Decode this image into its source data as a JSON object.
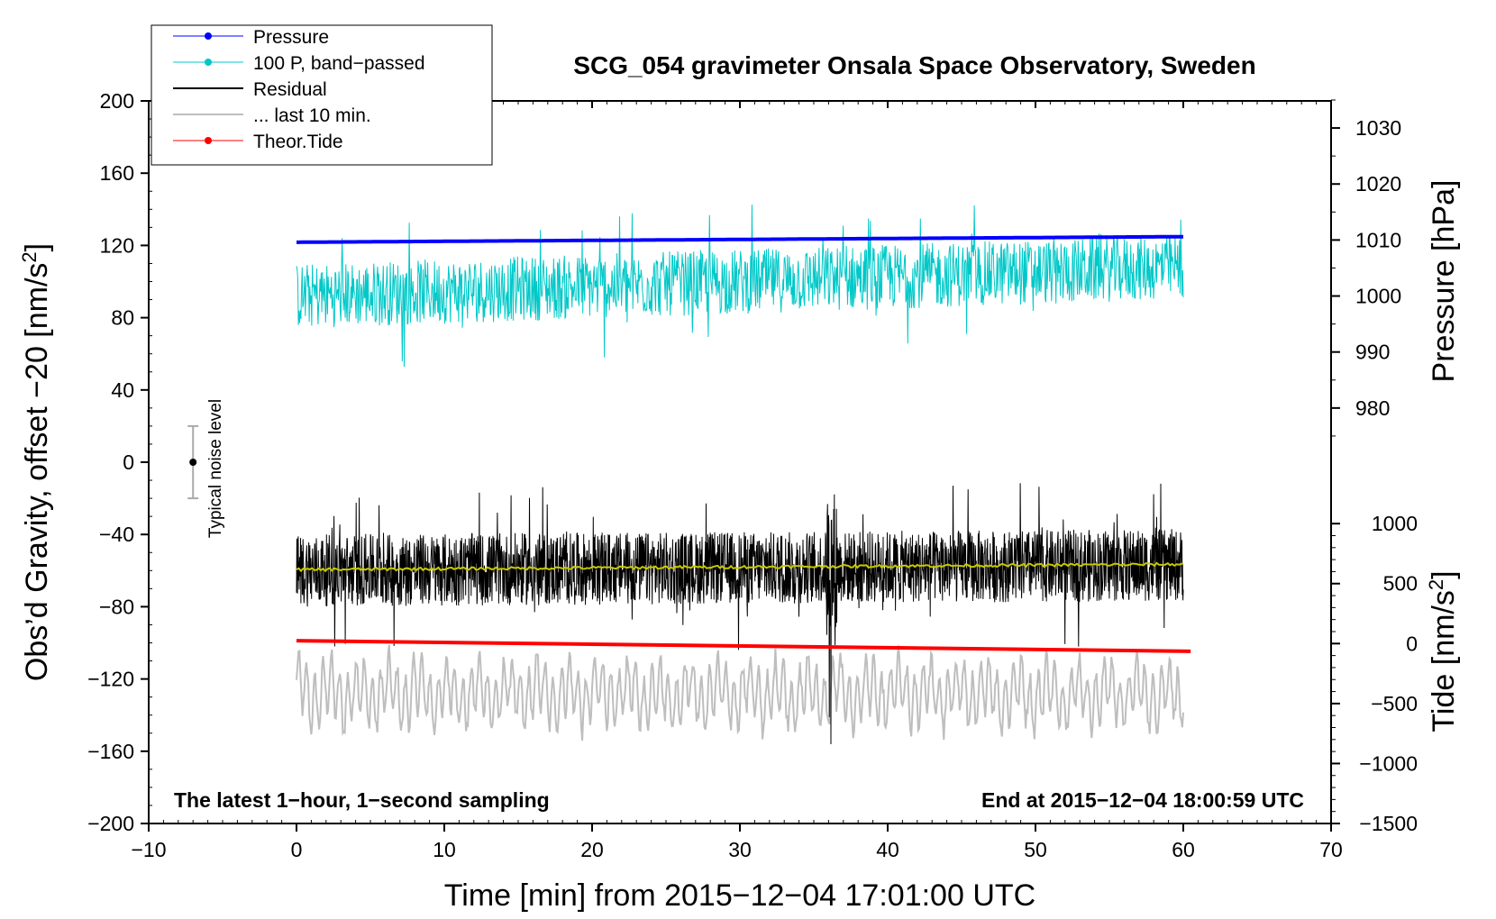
{
  "chart_data": {
    "type": "line",
    "title": "SCG_054 gravimeter Onsala Space Observatory, Sweden",
    "xlabel": "Time [min] from 2015−12−04 17:01:00 UTC",
    "ylabel_left_main": "Obs’d Gravity, offset −20 [nm/s",
    "ylabel_left_sup": "2",
    "ylabel_left_end": "]",
    "ylabel_right_pressure": "Pressure [hPa]",
    "ylabel_right_tide_main": "Tide [nm/s",
    "ylabel_right_tide_sup": "2",
    "ylabel_right_tide_end": "]",
    "xlim": [
      -10,
      70
    ],
    "ylim": [
      -200,
      200
    ],
    "x_ticks": [
      -10,
      0,
      10,
      20,
      30,
      40,
      50,
      60,
      70
    ],
    "x_tick_labels": [
      "−10",
      "0",
      "10",
      "20",
      "30",
      "40",
      "50",
      "60",
      "70"
    ],
    "y_ticks": [
      -200,
      -160,
      -120,
      -80,
      -40,
      0,
      40,
      80,
      120,
      160,
      200
    ],
    "y_tick_labels": [
      "−200",
      "−160",
      "−120",
      "−80",
      "−40",
      "0",
      "40",
      "80",
      "120",
      "160",
      "200"
    ],
    "pressure_axis": {
      "ticks": [
        980,
        990,
        1000,
        1010,
        1020,
        1030
      ],
      "tick_labels": [
        "980",
        "990",
        "1000",
        "1010",
        "1020",
        "1030"
      ],
      "ref": [
        {
          "value": 980,
          "gravity": 30
        },
        {
          "value": 1030,
          "gravity": 185
        }
      ]
    },
    "tide_axis": {
      "ticks": [
        -1500,
        -1000,
        -500,
        0,
        500,
        1000
      ],
      "tick_labels": [
        "−1500",
        "−1000",
        "−500",
        "0",
        "500",
        "1000"
      ],
      "ref": [
        {
          "value": -1500,
          "gravity": -200
        },
        {
          "value": 1000,
          "gravity": -34
        }
      ]
    },
    "legend": {
      "position": "top-left",
      "entries": [
        {
          "label": "Pressure",
          "color": "#0000ff",
          "marker": true
        },
        {
          "label": "100 P, band−passed",
          "color": "#00c8c8",
          "marker": true
        },
        {
          "label": "Residual",
          "color": "#000000",
          "marker": false
        },
        {
          "label": "... last 10 min.",
          "color": "#bebebe",
          "marker": false
        },
        {
          "label": "Theor.Tide",
          "color": "#ff0000",
          "marker": true
        }
      ]
    },
    "annotations": {
      "noise_label": "Typical noise level",
      "noise_bar": {
        "x": -7,
        "center": 0,
        "low": -20,
        "high": 20
      },
      "bottom_left": "The latest 1−hour, 1−second sampling",
      "bottom_right": "End at 2015−12−04 18:00:59 UTC"
    },
    "series": [
      {
        "name": "Pressure",
        "color": "#0000ff",
        "x_range": [
          0,
          60
        ],
        "values_hPa": [
          1009.6,
          1010.6
        ],
        "gravity_level": [
          122,
          124
        ]
      },
      {
        "name": "100 P, band−passed",
        "color": "#00c8c8",
        "x_range": [
          0,
          60
        ],
        "gravity_mean": [
          92,
          108
        ],
        "amplitude": 18
      },
      {
        "name": "Residual",
        "color": "#000000",
        "x_range": [
          0,
          60
        ],
        "gravity_mean": [
          -60,
          -57
        ],
        "amplitude": 20
      },
      {
        "name": "Residual smoothed",
        "color": "#c8c800",
        "x_range": [
          0,
          60
        ],
        "gravity_mean": [
          -59.5,
          -56.5
        ]
      },
      {
        "name": "... last 10 min.",
        "color": "#bebebe",
        "x_range": [
          0,
          60
        ],
        "gravity_mean": -128,
        "amplitude": 20
      },
      {
        "name": "Theor.Tide",
        "color": "#ff0000",
        "x_range": [
          0,
          60.5
        ],
        "tide_values": [
          24,
          -64
        ],
        "gravity_level": [
          -96,
          -104
        ]
      }
    ]
  }
}
